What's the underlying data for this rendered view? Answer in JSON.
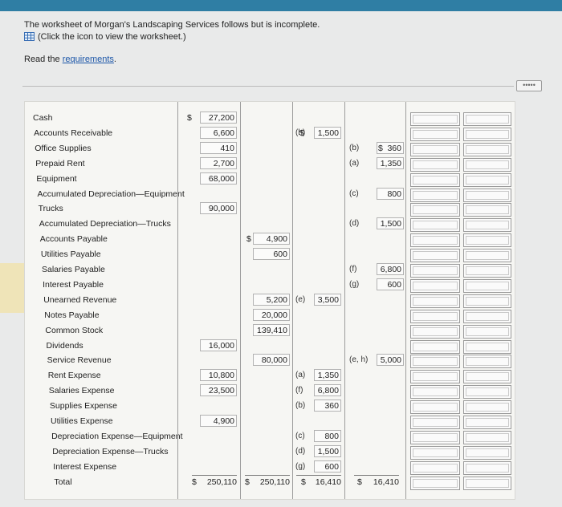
{
  "intro": {
    "line1": "The worksheet of Morgan's Landscaping Services follows but is incomplete.",
    "line2": "(Click the icon to view the worksheet.)",
    "read": "Read the ",
    "requirements_link": "requirements",
    "read_end": "."
  },
  "more_button": "•••••",
  "colors": {
    "link": "#1a55a8",
    "topbar": "#2f7ea4"
  },
  "accounts": [
    "Cash",
    "Accounts Receivable",
    "Office Supplies",
    "Prepaid Rent",
    "Equipment",
    "Accumulated Depreciation—Equipment",
    "Trucks",
    "Accumulated Depreciation—Trucks",
    "Accounts Payable",
    "Utilities Payable",
    "Salaries Payable",
    "Interest Payable",
    "Unearned Revenue",
    "Notes Payable",
    "Common Stock",
    "Dividends",
    "Service Revenue",
    "Rent Expense",
    "Salaries Expense",
    "Supplies Expense",
    "Utilities Expense",
    "Depreciation Expense—Equipment",
    "Depreciation Expense—Trucks",
    "Interest Expense",
    "Total"
  ],
  "unadjusted_debit": [
    {
      "row": 0,
      "value": "27,200"
    },
    {
      "row": 1,
      "value": "6,600"
    },
    {
      "row": 2,
      "value": "410"
    },
    {
      "row": 3,
      "value": "2,700"
    },
    {
      "row": 4,
      "value": "68,000"
    },
    {
      "row": 6,
      "value": "90,000"
    },
    {
      "row": 15,
      "value": "16,000"
    },
    {
      "row": 17,
      "value": "10,800"
    },
    {
      "row": 18,
      "value": "23,500"
    },
    {
      "row": 20,
      "value": "4,900"
    }
  ],
  "unadjusted_credit": [
    {
      "row": 8,
      "value": "4,900"
    },
    {
      "row": 9,
      "value": "600"
    },
    {
      "row": 12,
      "value": "5,200"
    },
    {
      "row": 13,
      "value": "20,000"
    },
    {
      "row": 14,
      "value": "139,410"
    },
    {
      "row": 16,
      "value": "80,000"
    }
  ],
  "adjustment_debit": [
    {
      "row": 1,
      "ref": "(h)",
      "value": "1,500"
    },
    {
      "row": 12,
      "ref": "(e)",
      "value": "3,500"
    },
    {
      "row": 17,
      "ref": "(a)",
      "value": "1,350"
    },
    {
      "row": 18,
      "ref": "(f)",
      "value": "6,800"
    },
    {
      "row": 19,
      "ref": "(b)",
      "value": "360"
    },
    {
      "row": 21,
      "ref": "(c)",
      "value": "800"
    },
    {
      "row": 22,
      "ref": "(d)",
      "value": "1,500"
    },
    {
      "row": 23,
      "ref": "(g)",
      "value": "600"
    }
  ],
  "adjustment_credit": [
    {
      "row": 2,
      "ref": "(b)",
      "value": "360"
    },
    {
      "row": 3,
      "ref": "(a)",
      "value": "1,350"
    },
    {
      "row": 5,
      "ref": "(c)",
      "value": "800"
    },
    {
      "row": 7,
      "ref": "(d)",
      "value": "1,500"
    },
    {
      "row": 10,
      "ref": "(f)",
      "value": "6,800"
    },
    {
      "row": 11,
      "ref": "(g)",
      "value": "600"
    },
    {
      "row": 16,
      "ref": "(e, h)",
      "value": "5,000"
    }
  ],
  "dollar_sign": "$",
  "totals": {
    "unadjusted_debit": "250,110",
    "unadjusted_credit": "250,110",
    "adjustment_debit": "16,410",
    "adjustment_credit": "16,410"
  }
}
